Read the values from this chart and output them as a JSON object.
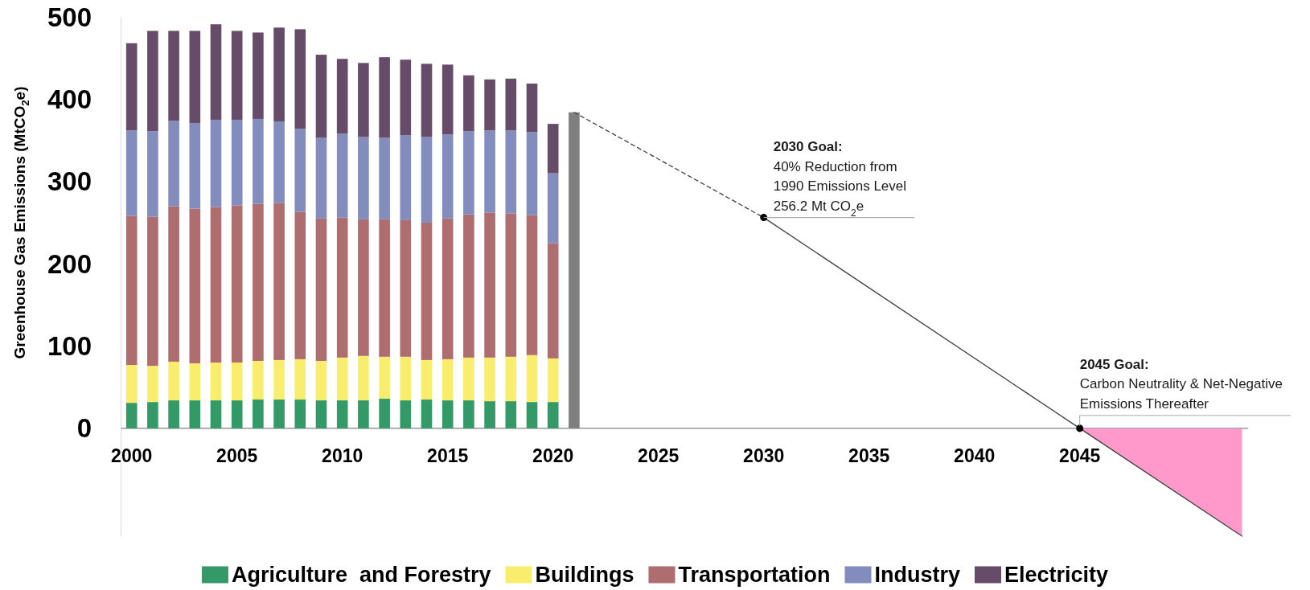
{
  "chart_data": {
    "type": "bar",
    "stacked": true,
    "ylabel": "Greenhouse Gas Emissions (MtCO$_{2}$e)",
    "x": [
      2000,
      2001,
      2002,
      2003,
      2004,
      2005,
      2006,
      2007,
      2008,
      2009,
      2010,
      2011,
      2012,
      2013,
      2014,
      2015,
      2016,
      2017,
      2018,
      2019,
      2020,
      2021
    ],
    "series": [
      {
        "name": "Agriculture  and Forestry",
        "color": "#339966",
        "values": [
          31,
          32,
          34,
          34,
          34,
          34,
          35,
          35,
          35,
          34,
          34,
          34,
          36,
          34,
          35,
          34,
          34,
          33,
          33,
          32,
          32,
          null
        ]
      },
      {
        "name": "Buildings",
        "color": "#f8ed6d",
        "values": [
          46,
          44,
          47,
          45,
          46,
          46,
          47,
          48,
          49,
          48,
          52,
          54,
          51,
          53,
          48,
          50,
          52,
          53,
          54,
          57,
          53,
          null
        ]
      },
      {
        "name": "Transportation",
        "color": "#ae6d6f",
        "values": [
          181,
          181,
          189,
          188,
          189,
          191,
          191,
          191,
          179,
          173,
          170,
          166,
          167,
          166,
          167,
          171,
          174,
          176,
          174,
          170,
          140,
          null
        ]
      },
      {
        "name": "Industry",
        "color": "#838dbd",
        "values": [
          104,
          104,
          104,
          104,
          106,
          104,
          103,
          99,
          101,
          98,
          102,
          100,
          99,
          103,
          104,
          102,
          101,
          100,
          101,
          101,
          85,
          null
        ]
      },
      {
        "name": "Electricity",
        "color": "#664c69",
        "values": [
          106,
          122,
          109,
          112,
          116,
          108,
          105,
          114,
          121,
          101,
          91,
          90,
          98,
          92,
          89,
          85,
          68,
          62,
          63,
          59,
          60,
          null
        ]
      },
      {
        "type": "bar",
        "color": "#7f7f7f",
        "values": [
          null,
          null,
          null,
          null,
          null,
          null,
          null,
          null,
          null,
          null,
          null,
          null,
          null,
          null,
          null,
          null,
          null,
          null,
          null,
          null,
          null,
          384
        ]
      },
      {
        "type": "area",
        "color": "#ff99cc",
        "x": [
          2045,
          2052.7
        ],
        "values": [
          0,
          -131
        ]
      },
      {
        "type": "line",
        "color": "#404040",
        "line_style": "dashed",
        "x": [
          2021,
          2030
        ],
        "values": [
          384,
          256.2
        ]
      },
      {
        "type": "line",
        "color": "#404040",
        "x": [
          2030,
          2045,
          2052.7
        ],
        "values": [
          256.2,
          0,
          -131
        ]
      },
      {
        "type": "scatter",
        "color": "#000000",
        "marker": "circle",
        "x": [
          2030,
          2045
        ],
        "values": [
          256.2,
          0
        ]
      }
    ],
    "xlim": [
      1999.5,
      2053
    ],
    "xticks": [
      2000,
      2005,
      2010,
      2015,
      2020,
      2025,
      2030,
      2035,
      2040,
      2045
    ],
    "ylim": [
      -131,
      500
    ],
    "yticks": [
      0,
      100,
      200,
      300,
      400,
      500
    ],
    "legend": "bottom",
    "annotations": [
      {
        "text": "2030 Goal:\n40% Reduction from\n1990 Emissions Level\n256.2 Mt CO$_{2}$e",
        "x": 2030,
        "y": 256.2
      },
      {
        "text": "2045 Goal:\nCarbon Neutrality & Net-Negative\nEmissions Thereafter",
        "x": 2045,
        "y": 0
      }
    ]
  }
}
